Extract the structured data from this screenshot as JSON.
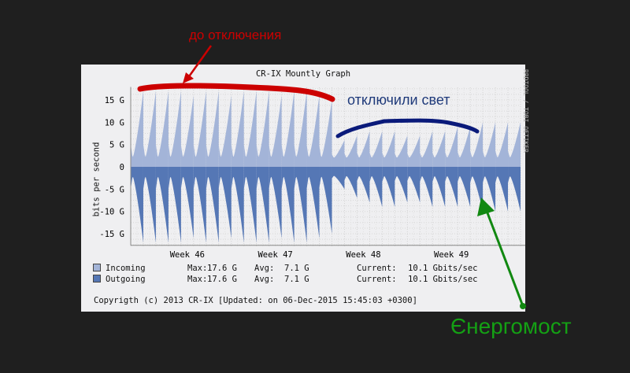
{
  "chart_data": {
    "type": "area",
    "title": "CR-IX Mountly Graph",
    "ylabel": "bits per second",
    "ylim": [
      -17.6,
      17.6
    ],
    "yticks": [
      "15 G",
      "10 G",
      "5 G",
      "0",
      "-5 G",
      "-10 G",
      "-15 G"
    ],
    "ytick_values": [
      15,
      10,
      5,
      0,
      -5,
      -10,
      -15
    ],
    "xticks": [
      "Week 46",
      "Week 47",
      "Week 48",
      "Week 49"
    ],
    "x_unit": "day",
    "xlim": [
      0,
      31
    ],
    "week_tick_days": [
      4.5,
      11.5,
      18.5,
      25.5
    ],
    "grid": true,
    "series": [
      {
        "name": "Incoming",
        "color": "#a3b4d8",
        "daily_peak_G": [
          17,
          17,
          17,
          17,
          16,
          17,
          17,
          16,
          17,
          17,
          17,
          16,
          17,
          17,
          16,
          15,
          6,
          7,
          8,
          8,
          8,
          7,
          7,
          8,
          8,
          9,
          9,
          10,
          10,
          10,
          10
        ],
        "daily_min_G": 2
      },
      {
        "name": "Outgoing",
        "color": "#5577b5",
        "daily_peak_G": [
          -17,
          -17,
          -17,
          -17,
          -16,
          -17,
          -17,
          -16,
          -17,
          -17,
          -17,
          -16,
          -17,
          -17,
          -16,
          -15,
          -5,
          -7,
          -8,
          -9,
          -9,
          -8,
          -8,
          -9,
          -9,
          -9,
          -9,
          -10,
          -10,
          -10,
          -10
        ],
        "daily_min_G": -2
      }
    ],
    "legend": [
      {
        "name": "Incoming",
        "max": "17.6 G",
        "avg": "7.1 G",
        "current": "10.1 Gbits/sec"
      },
      {
        "name": "Outgoing",
        "max": "17.6 G",
        "avg": "7.1 G",
        "current": "10.1 Gbits/sec"
      }
    ],
    "legend_labels": {
      "max": "Max:",
      "avg": "Avg:",
      "current": "Current:"
    },
    "footer": "Copyrigth (c) 2013 CR-IX [Updated: on 06-Dec-2015 15:45:03 +0300]",
    "credit": "RRDTOOL / TOBI OETIKER",
    "annotations": {
      "before": "до отключения",
      "outage": "отключили свет",
      "energobridge": "Єнергомост"
    },
    "colors": {
      "red": "#cc0000",
      "blue": "#0a1a7a",
      "green": "#118811"
    }
  }
}
